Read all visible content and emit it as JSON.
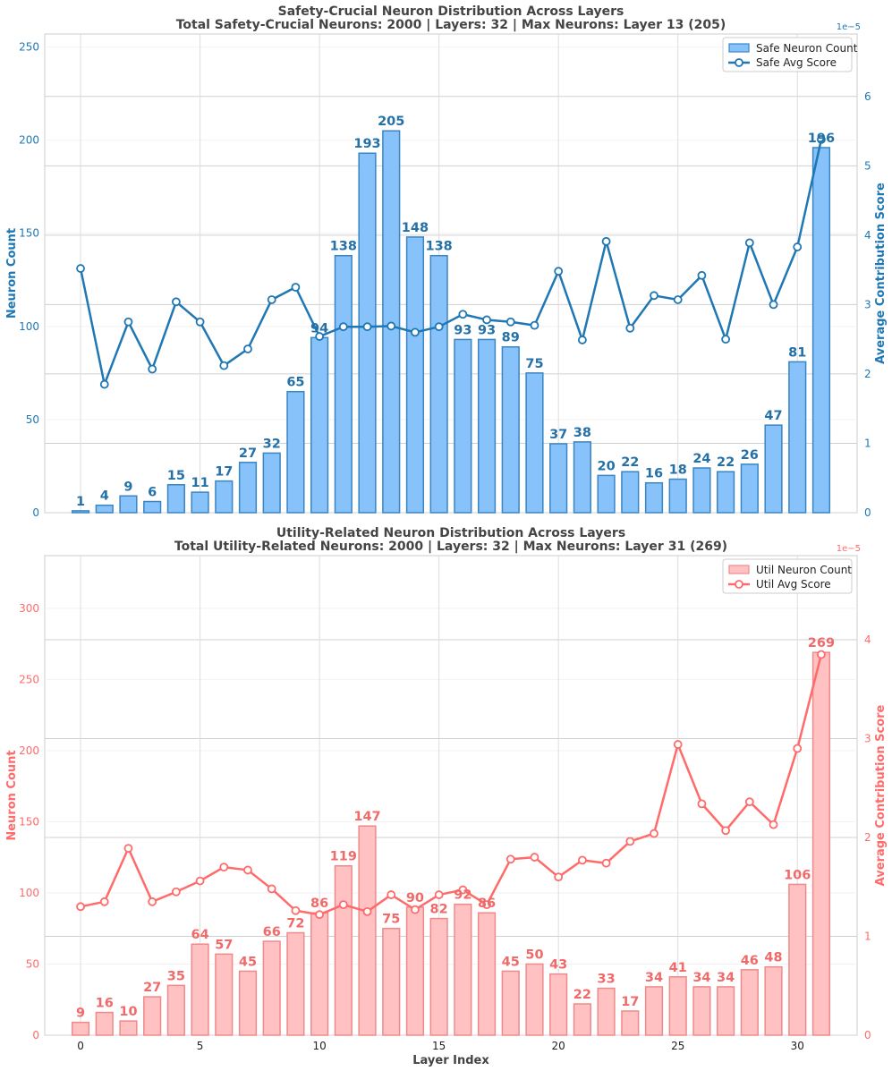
{
  "chart_data": [
    {
      "type": "bar",
      "title_line1": "Safety-Crucial Neuron Distribution Across Layers",
      "title_line2": "Total Safety-Crucial Neurons: 2000 | Layers: 32 | Max Neurons: Layer 13 (205)",
      "xlabel": "",
      "ylabel": "Neuron Count",
      "y2label": "Average Contribution Score",
      "y2_exponent": "1e−5",
      "ylim": [
        0,
        257
      ],
      "y2lim": [
        0,
        6.9
      ],
      "yticks": [
        0,
        50,
        100,
        150,
        200,
        250
      ],
      "y2ticks": [
        0,
        1,
        2,
        3,
        4,
        5,
        6
      ],
      "xticks": [
        0,
        5,
        10,
        15,
        20,
        25,
        30
      ],
      "xtick_labels_visible": false,
      "accent": "#1f77b4",
      "bar_fill": "#87c2fa",
      "bar_stroke": "#3a85c2",
      "legend": [
        "Safe Neuron Count",
        "Safe Avg Score"
      ],
      "legend_position": "top-right",
      "categories": [
        0,
        1,
        2,
        3,
        4,
        5,
        6,
        7,
        8,
        9,
        10,
        11,
        12,
        13,
        14,
        15,
        16,
        17,
        18,
        19,
        20,
        21,
        22,
        23,
        24,
        25,
        26,
        27,
        28,
        29,
        30,
        31
      ],
      "values": [
        1,
        4,
        9,
        6,
        15,
        11,
        17,
        27,
        32,
        65,
        94,
        138,
        193,
        205,
        148,
        138,
        93,
        93,
        89,
        75,
        37,
        38,
        20,
        22,
        16,
        18,
        24,
        22,
        26,
        47,
        81,
        196
      ],
      "scores": [
        3.52,
        1.85,
        2.75,
        2.07,
        3.04,
        2.75,
        2.12,
        2.36,
        3.07,
        3.25,
        2.54,
        2.68,
        2.68,
        2.69,
        2.6,
        2.68,
        2.86,
        2.78,
        2.75,
        2.7,
        3.48,
        2.49,
        3.91,
        2.66,
        3.13,
        3.07,
        3.42,
        2.5,
        3.89,
        3.0,
        3.83,
        5.38
      ]
    },
    {
      "type": "bar",
      "title_line1": "Utility-Related Neuron Distribution Across Layers",
      "title_line2": "Total Utility-Related Neurons: 2000 | Layers: 32 | Max Neurons: Layer 31 (269)",
      "xlabel": "Layer Index",
      "ylabel": "Neuron Count",
      "y2label": "Average Contribution Score",
      "y2_exponent": "1e−5",
      "ylim": [
        0,
        337
      ],
      "y2lim": [
        0,
        4.85
      ],
      "yticks": [
        0,
        50,
        100,
        150,
        200,
        250,
        300
      ],
      "y2ticks": [
        0,
        1,
        2,
        3,
        4
      ],
      "xticks": [
        0,
        5,
        10,
        15,
        20,
        25,
        30
      ],
      "xtick_labels_visible": true,
      "accent": "#ff6b6b",
      "bar_fill": "#ffc1c1",
      "bar_stroke": "#f08a8a",
      "legend": [
        "Util Neuron Count",
        "Util Avg Score"
      ],
      "legend_position": "top-right",
      "categories": [
        0,
        1,
        2,
        3,
        4,
        5,
        6,
        7,
        8,
        9,
        10,
        11,
        12,
        13,
        14,
        15,
        16,
        17,
        18,
        19,
        20,
        21,
        22,
        23,
        24,
        25,
        26,
        27,
        28,
        29,
        30,
        31
      ],
      "values": [
        9,
        16,
        10,
        27,
        35,
        64,
        57,
        45,
        66,
        72,
        86,
        119,
        147,
        75,
        90,
        82,
        92,
        86,
        45,
        50,
        43,
        22,
        33,
        17,
        34,
        41,
        34,
        34,
        46,
        48,
        106,
        269
      ],
      "scores": [
        1.3,
        1.35,
        1.89,
        1.35,
        1.45,
        1.56,
        1.7,
        1.67,
        1.48,
        1.26,
        1.22,
        1.32,
        1.25,
        1.42,
        1.27,
        1.42,
        1.47,
        1.32,
        1.78,
        1.8,
        1.6,
        1.77,
        1.74,
        1.96,
        2.04,
        2.94,
        2.34,
        2.07,
        2.36,
        2.13,
        2.9,
        3.85
      ]
    }
  ]
}
